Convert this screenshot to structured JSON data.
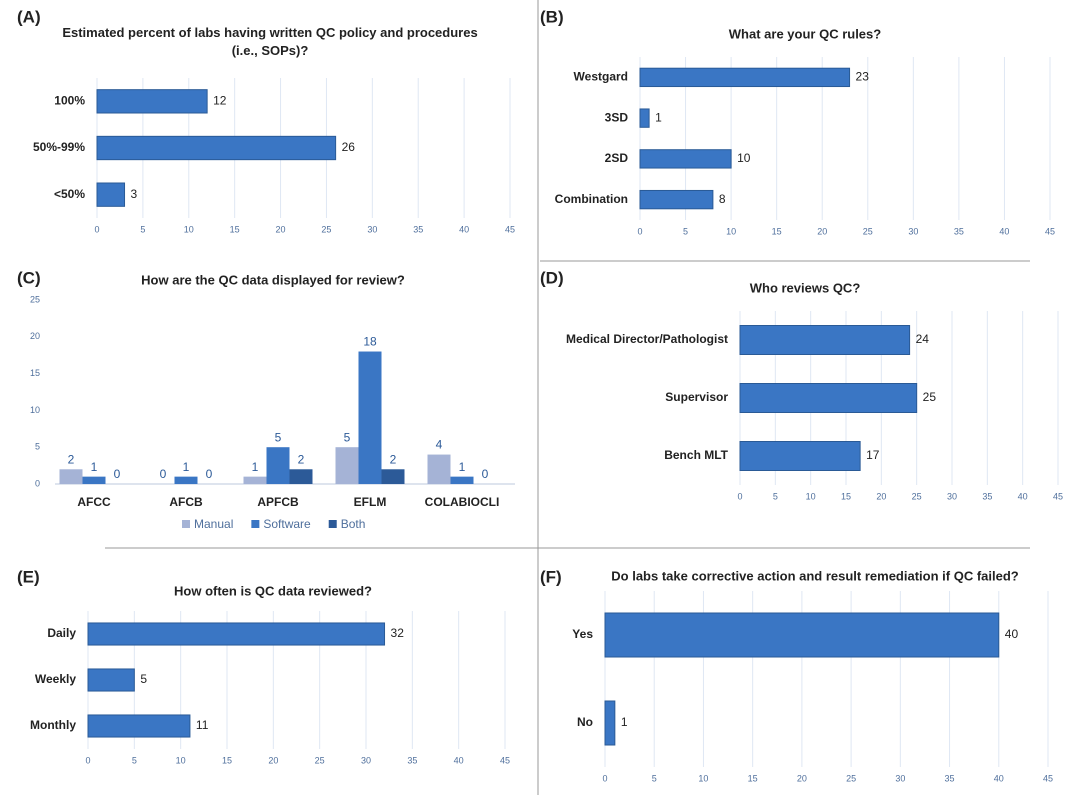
{
  "chart_data": [
    {
      "type": "hbar",
      "label": "(A)",
      "title": "Estimated percent of labs having written QC policy and procedures (i.e., SOPs)?",
      "categories": [
        "100%",
        "50%-99%",
        "<50%"
      ],
      "values": [
        12,
        26,
        3
      ],
      "color": "#3a76c4",
      "xlim": [
        0,
        45
      ],
      "xticks": [
        0,
        5,
        10,
        15,
        20,
        25,
        30,
        35,
        40,
        45
      ],
      "grid": true
    },
    {
      "type": "hbar",
      "label": "(B)",
      "title": "What are your QC rules?",
      "categories": [
        "Westgard",
        "3SD",
        "2SD",
        "Combination"
      ],
      "values": [
        23,
        1,
        10,
        8
      ],
      "color": "#3a76c4",
      "xlim": [
        0,
        45
      ],
      "xticks": [
        0,
        5,
        10,
        15,
        20,
        25,
        30,
        35,
        40,
        45
      ],
      "grid": true
    },
    {
      "type": "groupedbar",
      "label": "(C)",
      "title": "How are the QC data displayed for review?",
      "categories": [
        "AFCC",
        "AFCB",
        "APFCB",
        "EFLM",
        "COLABIOCLI"
      ],
      "series": [
        {
          "name": "Manual",
          "color": "#a5b3d6",
          "values": [
            2,
            0,
            1,
            5,
            4
          ]
        },
        {
          "name": "Software",
          "color": "#3a76c4",
          "values": [
            1,
            1,
            5,
            18,
            1
          ]
        },
        {
          "name": "Both",
          "color": "#2c5a98",
          "values": [
            0,
            0,
            2,
            2,
            0
          ]
        }
      ],
      "ylim": [
        0,
        25
      ],
      "yticks": [
        0,
        5,
        10,
        15,
        20,
        25
      ],
      "grid": false,
      "legend": "bottom"
    },
    {
      "type": "hbar",
      "label": "(D)",
      "title": "Who reviews QC?",
      "categories": [
        "Medical Director/Pathologist",
        "Supervisor",
        "Bench MLT"
      ],
      "values": [
        24,
        25,
        17
      ],
      "color": "#3a76c4",
      "xlim": [
        0,
        45
      ],
      "xticks": [
        0,
        5,
        10,
        15,
        20,
        25,
        30,
        35,
        40,
        45
      ],
      "grid": true
    },
    {
      "type": "hbar",
      "label": "(E)",
      "title": "How often is QC data reviewed?",
      "categories": [
        "Daily",
        "Weekly",
        "Monthly"
      ],
      "values": [
        32,
        5,
        11
      ],
      "color": "#3a76c4",
      "xlim": [
        0,
        45
      ],
      "xticks": [
        0,
        5,
        10,
        15,
        20,
        25,
        30,
        35,
        40,
        45
      ],
      "grid": true
    },
    {
      "type": "hbar",
      "label": "(F)",
      "title": "Do labs take corrective action and result remediation if QC failed?",
      "categories": [
        "Yes",
        "No"
      ],
      "values": [
        40,
        1
      ],
      "color": "#3a76c4",
      "xlim": [
        0,
        45
      ],
      "xticks": [
        0,
        5,
        10,
        15,
        20,
        25,
        30,
        35,
        40,
        45
      ],
      "grid": true
    }
  ]
}
